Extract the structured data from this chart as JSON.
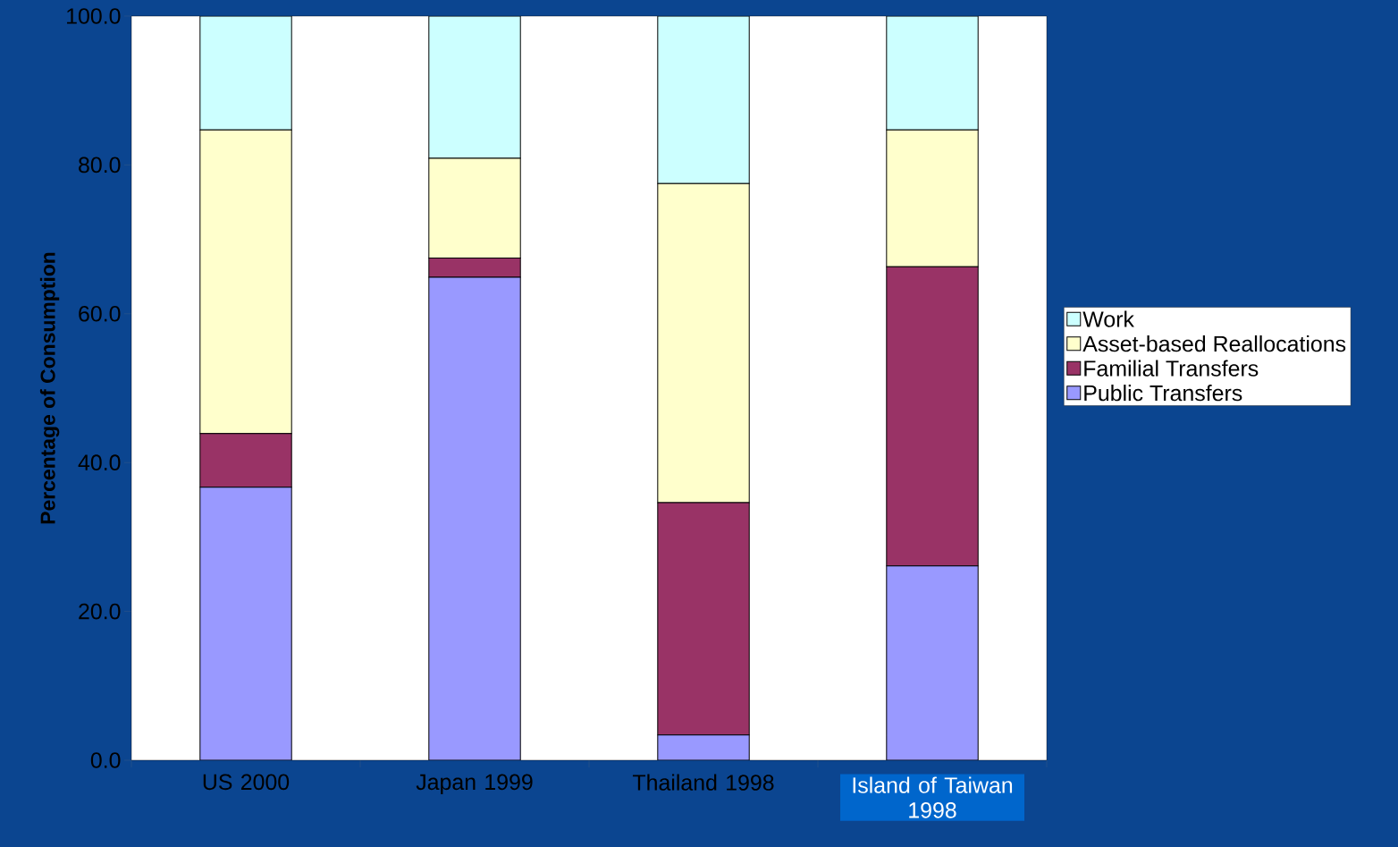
{
  "chart_data": {
    "type": "bar",
    "stacked": true,
    "ylabel": "Percentage of Consumption",
    "categories": [
      "US 2000",
      "Japan 1999",
      "Thailand 1998",
      "Island of Taiwan 1998"
    ],
    "series": [
      {
        "name": "Public Transfers",
        "color": "#9999ff",
        "values": [
          36.7,
          64.9,
          3.4,
          26.1
        ]
      },
      {
        "name": "Familial Transfers",
        "color": "#993366",
        "values": [
          7.2,
          2.6,
          31.2,
          40.2
        ]
      },
      {
        "name": "Asset-based Reallocations",
        "color": "#ffffcc",
        "values": [
          40.8,
          13.4,
          42.9,
          18.4
        ]
      },
      {
        "name": "Work",
        "color": "#ccffff",
        "values": [
          15.3,
          19.1,
          22.5,
          15.3
        ]
      }
    ],
    "ylim": [
      0,
      100
    ],
    "yticks": [
      {
        "value": 0,
        "label": "0.0"
      },
      {
        "value": 20,
        "label": "20.0"
      },
      {
        "value": 40,
        "label": "40.0"
      },
      {
        "value": 60,
        "label": "60.0"
      },
      {
        "value": 80,
        "label": "80.0"
      },
      {
        "value": 100,
        "label": "100.0"
      }
    ],
    "legend": "right"
  }
}
